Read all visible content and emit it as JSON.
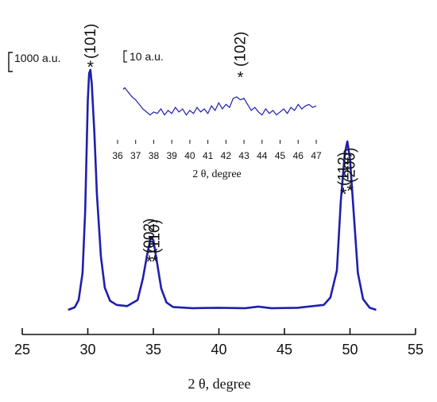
{
  "chart_data": {
    "type": "line",
    "xlabel": "2 θ, degree",
    "x_ticks": [
      "25",
      "30",
      "35",
      "40",
      "45",
      "50",
      "55"
    ],
    "xlim": [
      25,
      55
    ],
    "y_scale_label": "1000 a.u.",
    "line_color": "#1f1fae",
    "series": [
      {
        "x": [
          28.5,
          29.0,
          29.3,
          29.6,
          29.8,
          30.0,
          30.1,
          30.2,
          30.3,
          30.5,
          30.7,
          31.0,
          31.3,
          31.7,
          32.2,
          33.0,
          33.8,
          34.2,
          34.5,
          34.8,
          35.0,
          35.3,
          35.6,
          36.0,
          36.5,
          38,
          40,
          42,
          43,
          44,
          46,
          48,
          48.5,
          49.0,
          49.3,
          49.6,
          49.8,
          50.0,
          50.3,
          50.6,
          51.0,
          51.5,
          52.0
        ],
        "y": [
          0,
          30,
          120,
          450,
          1200,
          2550,
          2880,
          2920,
          2750,
          2150,
          1400,
          650,
          270,
          110,
          60,
          45,
          120,
          380,
          650,
          880,
          850,
          560,
          260,
          90,
          35,
          20,
          25,
          20,
          40,
          20,
          25,
          60,
          150,
          480,
          1320,
          1900,
          2050,
          1830,
          1150,
          450,
          130,
          25,
          0
        ]
      }
    ],
    "peaks": [
      {
        "label": "(101)",
        "x": 30.2,
        "marker": "*"
      },
      {
        "label": "(002)",
        "x": 34.7,
        "marker": "*"
      },
      {
        "label": "(110)",
        "x": 35.1,
        "marker": "*"
      },
      {
        "label": "(112)",
        "x": 49.5,
        "marker": "*"
      },
      {
        "label": "(200)",
        "x": 50.0,
        "marker": "*"
      }
    ]
  },
  "inset": {
    "xlabel": "2 θ, degree",
    "x_ticks": [
      "36",
      "37",
      "38",
      "39",
      "40",
      "41",
      "42",
      "43",
      "44",
      "45",
      "46",
      "47"
    ],
    "xlim": [
      36,
      47
    ],
    "y_scale_label": "10 a.u.",
    "series": {
      "x": [
        36.3,
        36.4,
        36.6,
        36.8,
        37.0,
        37.2,
        37.4,
        37.6,
        37.8,
        38.0,
        38.2,
        38.4,
        38.6,
        38.8,
        39.0,
        39.2,
        39.4,
        39.6,
        39.8,
        40.0,
        40.2,
        40.4,
        40.6,
        40.8,
        41.0,
        41.2,
        41.4,
        41.6,
        41.8,
        42.0,
        42.2,
        42.4,
        42.6,
        42.8,
        43.0,
        43.2,
        43.4,
        43.6,
        43.8,
        44.0,
        44.2,
        44.4,
        44.6,
        44.8,
        45.0,
        45.2,
        45.4,
        45.6,
        45.8,
        46.0,
        46.2,
        46.4,
        46.6,
        46.8,
        47.0
      ],
      "y": [
        4,
        5,
        2,
        -1,
        -3,
        -6,
        -9,
        -11,
        -13,
        -11,
        -12,
        -9,
        -13,
        -10,
        -12,
        -8,
        -11,
        -9,
        -13,
        -10,
        -12,
        -8,
        -11,
        -9,
        -12,
        -7,
        -10,
        -5,
        -9,
        -6,
        -8,
        -2,
        -1,
        -3,
        -2,
        -6,
        -10,
        -8,
        -11,
        -13,
        -9,
        -12,
        -10,
        -13,
        -11,
        -9,
        -12,
        -8,
        -10,
        -6,
        -9,
        -7,
        -6,
        -8,
        -7
      ]
    },
    "peak": {
      "label": "(102)",
      "x": 42.8,
      "marker": "*"
    }
  }
}
